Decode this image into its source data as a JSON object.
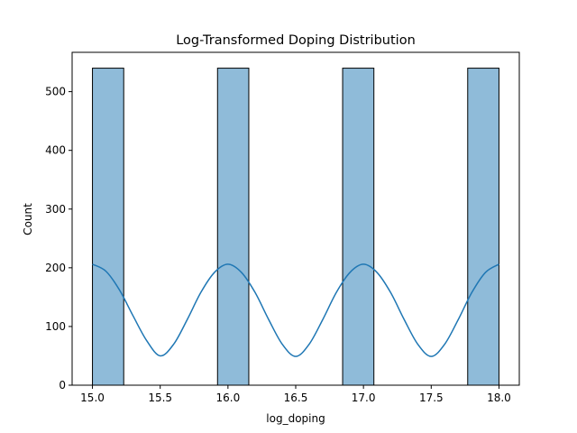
{
  "chart_data": {
    "type": "histogram",
    "title": "Log-Transformed Doping Distribution",
    "xlabel": "log_doping",
    "ylabel": "Count",
    "xlim": [
      14.85,
      18.15
    ],
    "ylim": [
      0,
      567
    ],
    "xticks": [
      15.0,
      15.5,
      16.0,
      16.5,
      17.0,
      17.5,
      18.0
    ],
    "xtick_labels": [
      "15.0",
      "15.5",
      "16.0",
      "16.5",
      "17.0",
      "17.5",
      "18.0"
    ],
    "yticks": [
      0,
      100,
      200,
      300,
      400,
      500
    ],
    "ytick_labels": [
      "0",
      "100",
      "200",
      "300",
      "400",
      "500"
    ],
    "bins": [
      {
        "x0": 15.0,
        "x1": 15.2308,
        "count": 540
      },
      {
        "x0": 15.9231,
        "x1": 16.1538,
        "count": 540
      },
      {
        "x0": 16.8462,
        "x1": 17.0769,
        "count": 540
      },
      {
        "x0": 17.7692,
        "x1": 18.0,
        "count": 540
      }
    ],
    "kde": {
      "x": [
        15.0,
        15.1,
        15.2,
        15.3,
        15.4,
        15.5,
        15.6,
        15.7,
        15.8,
        15.9,
        16.0,
        16.1,
        16.2,
        16.3,
        16.4,
        16.5,
        16.6,
        16.7,
        16.8,
        16.9,
        17.0,
        17.1,
        17.2,
        17.3,
        17.4,
        17.5,
        17.6,
        17.7,
        17.8,
        17.9,
        18.0
      ],
      "y": [
        206,
        194,
        162,
        118,
        76,
        50,
        70,
        112,
        158,
        192,
        206,
        192,
        158,
        112,
        70,
        49,
        70,
        112,
        158,
        192,
        206,
        192,
        158,
        112,
        70,
        49,
        70,
        112,
        158,
        192,
        206
      ]
    },
    "grid": false,
    "colors": {
      "bar_fill": "#1f77b4",
      "bar_fill_opacity": 0.5,
      "bar_edge": "#000000",
      "kde_line": "#1f77b4",
      "axes": "#000000"
    }
  }
}
